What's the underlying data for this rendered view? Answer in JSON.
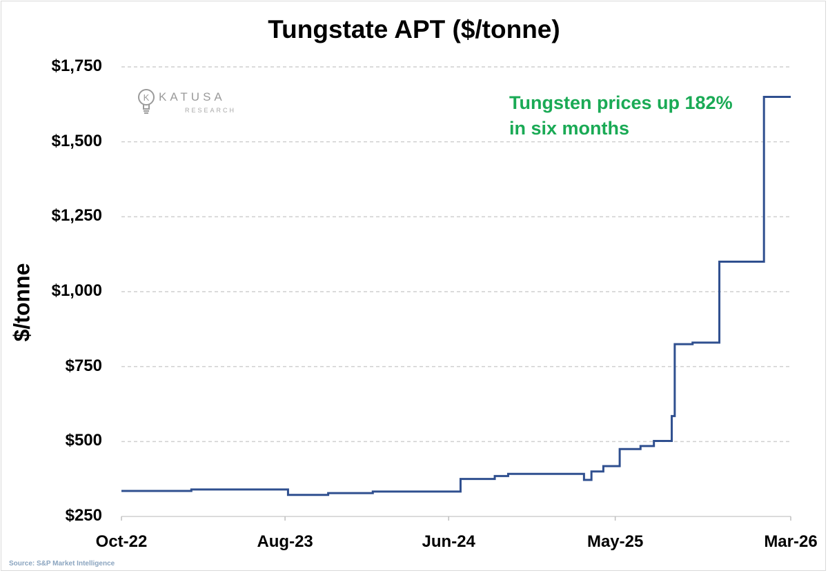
{
  "chart_data": {
    "type": "line",
    "title": "Tungstate APT ($/tonne)",
    "ylabel": "$/tonne",
    "xlabel": "",
    "ylim": [
      250,
      1750
    ],
    "y_ticks": [
      "$250",
      "$500",
      "$750",
      "$1,000",
      "$1,250",
      "$1,500",
      "$1,750"
    ],
    "y_tick_values": [
      250,
      500,
      750,
      1000,
      1250,
      1500,
      1750
    ],
    "x_ticks": [
      "Oct-22",
      "Aug-23",
      "Jun-24",
      "May-25",
      "Mar-26"
    ],
    "grid": true,
    "line_color": "#2f4f8f",
    "annotation_color": "#1aaa55",
    "annotation": [
      "Tungsten prices up 182%",
      "in six months"
    ],
    "source": "Source: S&P Market Intelligence",
    "logo": {
      "word": "KATUSA",
      "sub": "RESEARCH"
    },
    "series": [
      {
        "values_note": "step series; x = months since Oct-22",
        "x": [
          0,
          4.7,
          11.2,
          13.9,
          16.9,
          22.8,
          25.1,
          26.0,
          27.4,
          31.1,
          31.6,
          32.4,
          33.5,
          34.9,
          35.8,
          37.0,
          37.2,
          38.4,
          39.0,
          40.2,
          43.2,
          43.9,
          45.0
        ],
        "y": [
          335,
          340,
          322,
          328,
          333,
          375,
          385,
          392,
          392,
          372,
          400,
          418,
          475,
          485,
          502,
          585,
          825,
          830,
          830,
          1100,
          1650,
          1650,
          1650
        ]
      }
    ]
  }
}
